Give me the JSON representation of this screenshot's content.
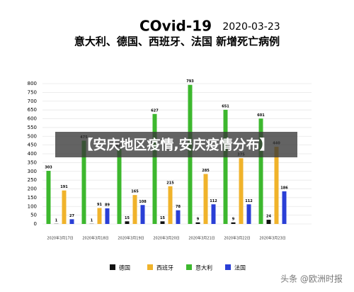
{
  "chart_data": {
    "type": "bar",
    "title": "COvid-19",
    "date": "2020-03-23",
    "subtitle": "意大利、德国、西班牙、法国 新增死亡病例",
    "categories": [
      "2020年3月17日",
      "2020年3月18日",
      "2020年3月19日",
      "2020年3月20日",
      "2020年3月21日",
      "2020年3月22日",
      "2020年3月23日"
    ],
    "series": [
      {
        "name": "德国",
        "color": "#111111",
        "values": [
          1,
          1,
          15,
          15,
          9,
          9,
          24
        ]
      },
      {
        "name": "西班牙",
        "color": "#f0b32b",
        "values": [
          191,
          91,
          165,
          215,
          285,
          375,
          440
        ]
      },
      {
        "name": "意大利",
        "color": "#3db82e",
        "values": [
          303,
          475,
          427,
          627,
          793,
          651,
          601
        ]
      },
      {
        "name": "法国",
        "color": "#2a3fd6",
        "values": [
          27,
          89,
          108,
          78,
          112,
          112,
          186
        ]
      }
    ],
    "ylim": [
      0,
      800
    ],
    "yticks": [
      0,
      50,
      100,
      150,
      200,
      250,
      300,
      350,
      400,
      450,
      500,
      550,
      600,
      650,
      700,
      750,
      800
    ],
    "grid": true
  },
  "banner": "【安庆地区疫情,安庆疫情分布】",
  "watermark": "头条 @欧洲时报"
}
